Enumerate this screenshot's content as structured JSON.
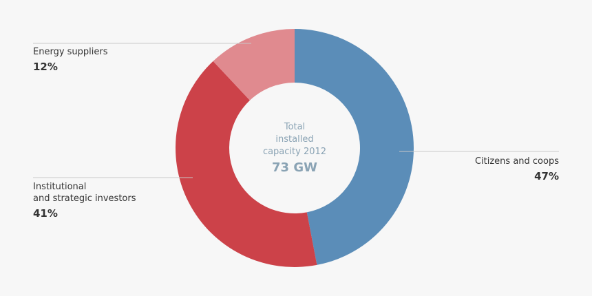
{
  "chart_data": {
    "type": "pie",
    "donut": true,
    "center_label": "Total\ninstalled\ncapacity 2012",
    "center_value": "73 GW",
    "categories": [
      "Citizens and coops",
      "Institutional\nand strategic investors",
      "Energy suppliers"
    ],
    "values": [
      47,
      41,
      12
    ],
    "value_labels": [
      "47%",
      "41%",
      "12%"
    ],
    "colors": [
      "#5b8db8",
      "#cc4249",
      "#e08a8f"
    ]
  }
}
